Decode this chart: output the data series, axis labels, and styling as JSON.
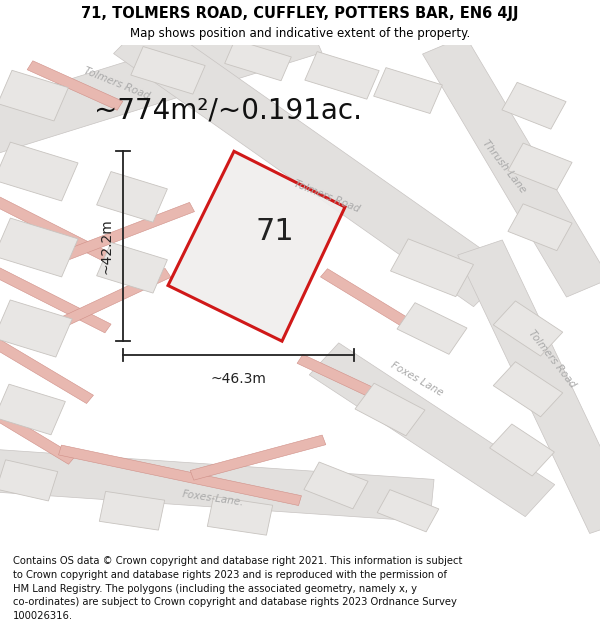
{
  "title_line1": "71, TOLMERS ROAD, CUFFLEY, POTTERS BAR, EN6 4JJ",
  "title_line2": "Map shows position and indicative extent of the property.",
  "area_text": "~774m²/~0.191ac.",
  "label_71": "71",
  "dim_vertical": "~42.2m",
  "dim_horizontal": "~46.3m",
  "footer_lines": [
    "Contains OS data © Crown copyright and database right 2021. This information is subject",
    "to Crown copyright and database rights 2023 and is reproduced with the permission of",
    "HM Land Registry. The polygons (including the associated geometry, namely x, y",
    "co-ordinates) are subject to Crown copyright and database rights 2023 Ordnance Survey",
    "100026316."
  ],
  "map_bg": "#f7f5f3",
  "building_fill": "#e8e6e4",
  "building_edge": "#c8c4c0",
  "pink_line": "#e8b8b0",
  "grey_road_fill": "#e2e0de",
  "grey_road_edge": "#c8c4c2",
  "red_stroke": "#cc0000",
  "plot_fill": "#f0eeed",
  "road_label_color": "#aaaaaa",
  "dim_line_color": "#222222",
  "area_text_color": "#111111",
  "label_color": "#222222",
  "footer_color": "#111111",
  "title_fontsize": 10.5,
  "footer_fontsize": 7.2,
  "area_fontsize": 20,
  "label_fontsize": 22,
  "dim_fontsize": 10
}
